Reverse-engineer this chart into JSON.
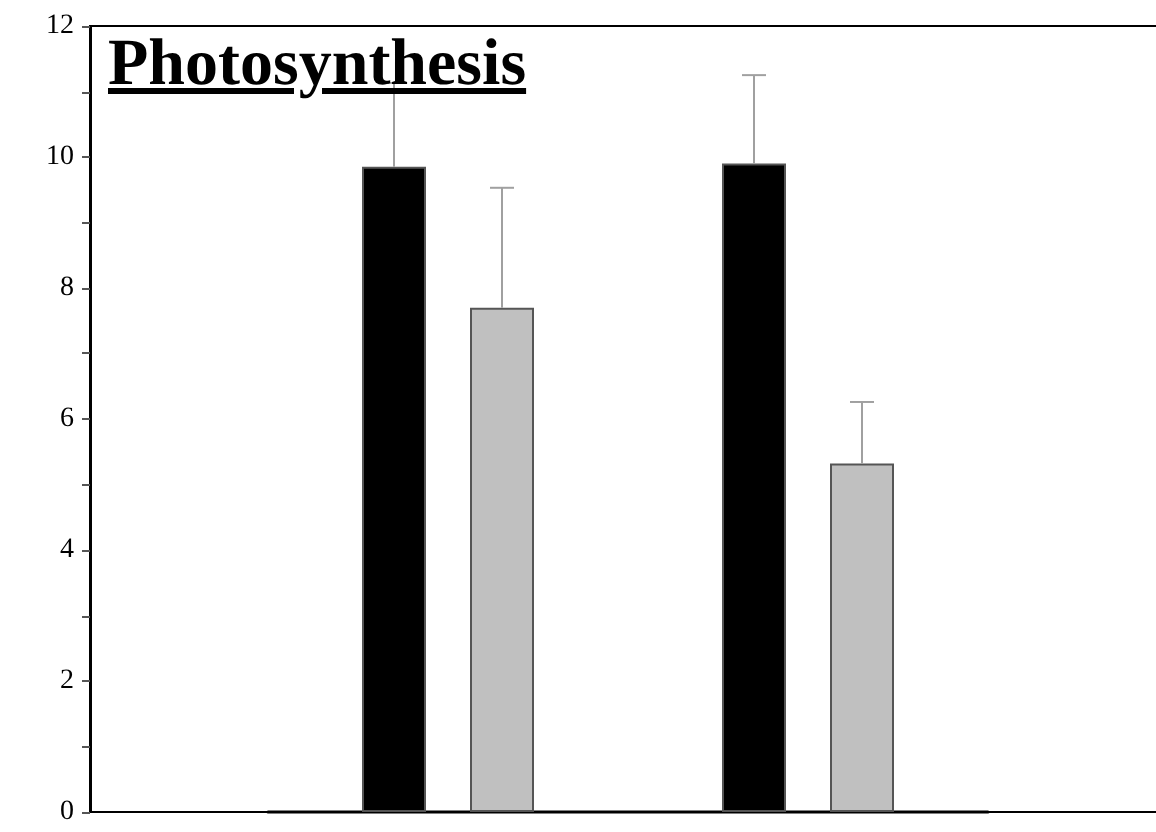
{
  "chart_data": {
    "type": "bar",
    "title": "Photosynthesis",
    "categories": [
      null,
      null
    ],
    "series": [
      {
        "color": "#000000",
        "values": [
          9.85,
          9.9
        ],
        "errors": [
          [
            9.85,
            11.13
          ],
          [
            9.9,
            11.25
          ]
        ]
      },
      {
        "color": "#c0c0c0",
        "values": [
          7.7,
          5.32
        ],
        "errors": [
          [
            7.7,
            9.53
          ],
          [
            5.32,
            6.26
          ]
        ]
      }
    ],
    "ylim": [
      0,
      12
    ],
    "yticks": [
      0,
      2,
      4,
      6,
      8,
      10,
      12
    ],
    "tick_labels": "y",
    "grid": false
  }
}
